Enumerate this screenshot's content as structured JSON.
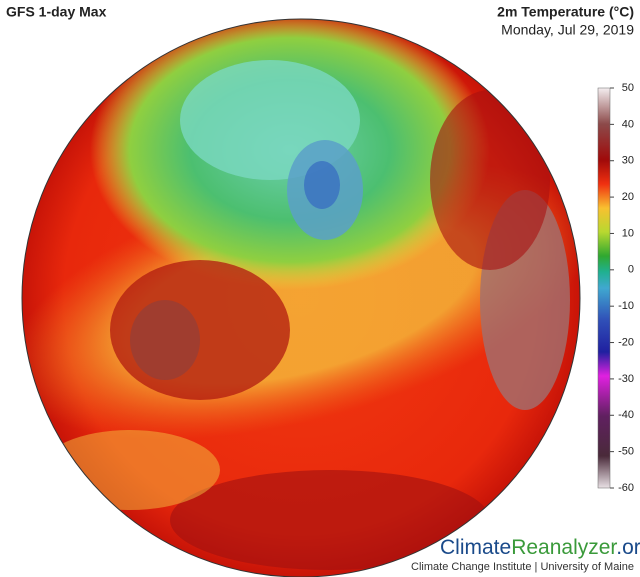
{
  "header": {
    "title": "GFS 1-day Max",
    "variable": "2m Temperature (°C)",
    "date": "Monday, Jul 29, 2019"
  },
  "colorbar": {
    "range": [
      -60,
      50
    ],
    "ticks": [
      50,
      40,
      30,
      20,
      10,
      0,
      -10,
      -20,
      -30,
      -40,
      -50,
      -60
    ]
  },
  "footer": {
    "brand_part1": "Climate",
    "brand_part2": "Reanalyzer",
    "brand_part3": ".org",
    "credit": "Climate Change Institute | University of Maine"
  }
}
